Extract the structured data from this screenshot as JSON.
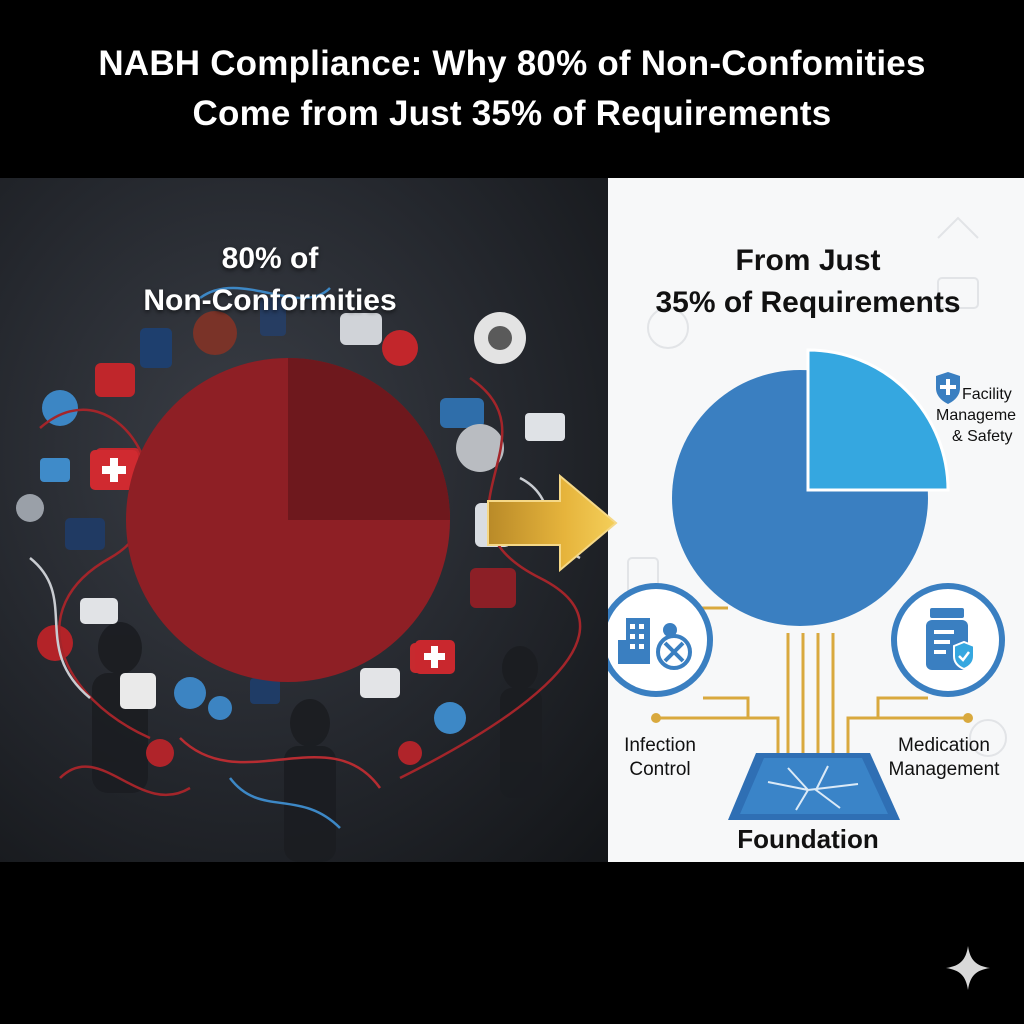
{
  "title": {
    "line1": "NABH Compliance: Why 80% of Non-Confomities",
    "line2": "Come from Just 35% of Requirements"
  },
  "left": {
    "heading_line1": "80% of",
    "heading_line2": "Non-Conformities",
    "pie_highlight_fraction": 0.25
  },
  "right": {
    "heading_line1": "From Just",
    "heading_line2": "35% of Requirements",
    "pie_highlight_fraction": 0.25,
    "labels": {
      "facility_line1": "Facility",
      "facility_line2": "Manageme",
      "facility_line3": "& Safety",
      "infection_line1": "Infection",
      "infection_line2": "Control",
      "medication_line1": "Medication",
      "medication_line2": "Management",
      "foundation": "Foundation"
    }
  },
  "colors": {
    "left_pie": "#8e1f25",
    "left_pie_dark": "#6e181d",
    "right_pie": "#3a7fc1",
    "right_pie_highlight": "#35a7e0",
    "arrow": "#e6b43c",
    "circuit": "#d9a93e"
  },
  "icons": [
    "shield-cross-icon",
    "building-icon",
    "virus-blocked-icon",
    "medicine-bottle-icon",
    "shield-check-icon",
    "sparkle-icon"
  ]
}
